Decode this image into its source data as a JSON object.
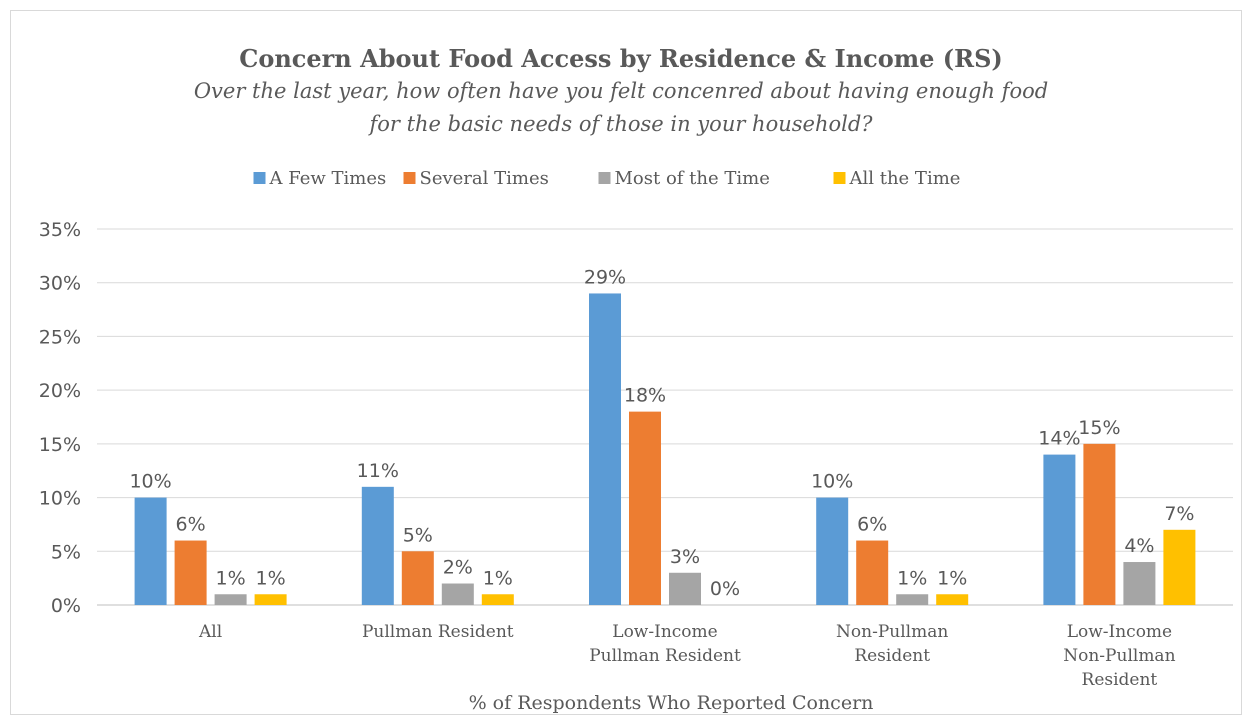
{
  "chart_data": {
    "type": "bar",
    "title": "Concern About Food Access by Residence & Income (RS)",
    "subtitle_lines": [
      "Over the last year, how often have you felt concenred about having enough food",
      "for the basic needs of those in your household?"
    ],
    "xlabel": "% of Respondents Who Reported Concern",
    "ylabel": "",
    "ylim": [
      0,
      35
    ],
    "yticks": [
      0,
      5,
      10,
      15,
      20,
      25,
      30,
      35
    ],
    "ytick_labels": [
      "0%",
      "5%",
      "10%",
      "15%",
      "20%",
      "25%",
      "30%",
      "35%"
    ],
    "grid": true,
    "legend_position": "top",
    "categories": [
      [
        "All"
      ],
      [
        "Pullman Resident"
      ],
      [
        "Low-Income",
        "Pullman Resident"
      ],
      [
        "Non-Pullman",
        "Resident"
      ],
      [
        "Low-Income",
        "Non-Pullman",
        "Resident"
      ]
    ],
    "series": [
      {
        "name": "A Few Times",
        "color": "#5b9bd5",
        "values": [
          10,
          11,
          29,
          10,
          14
        ],
        "labels": [
          "10%",
          "11%",
          "29%",
          "10%",
          "14%"
        ]
      },
      {
        "name": "Several Times",
        "color": "#ed7d31",
        "values": [
          6,
          5,
          18,
          6,
          15
        ],
        "labels": [
          "6%",
          "5%",
          "18%",
          "6%",
          "15%"
        ]
      },
      {
        "name": "Most of the Time",
        "color": "#a5a5a5",
        "values": [
          1,
          2,
          3,
          1,
          4
        ],
        "labels": [
          "1%",
          "2%",
          "3%",
          "1%",
          "4%"
        ]
      },
      {
        "name": "All the Time",
        "color": "#ffc000",
        "values": [
          1,
          1,
          0,
          1,
          7
        ],
        "labels": [
          "1%",
          "1%",
          "0%",
          "1%",
          "7%"
        ]
      }
    ]
  }
}
